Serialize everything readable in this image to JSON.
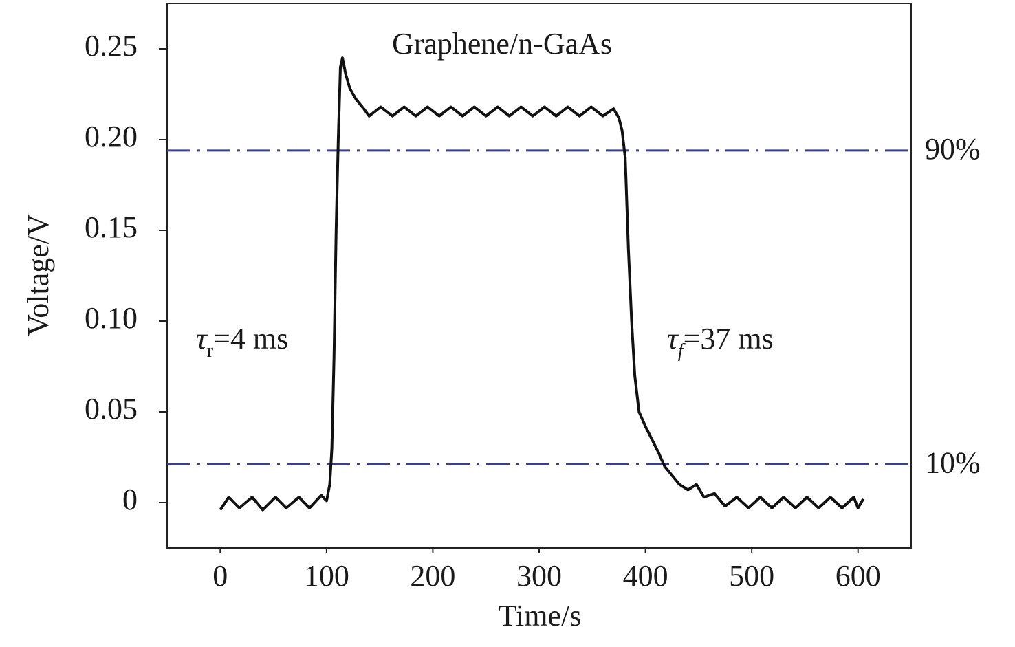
{
  "chart_data": {
    "type": "line",
    "xlabel": "Time/s",
    "ylabel": "Voltage/V",
    "xlim": [
      -50,
      650
    ],
    "xticks": [
      0,
      100,
      200,
      300,
      400,
      500,
      600
    ],
    "ylim": [
      -0.025,
      0.275
    ],
    "yticks": [
      {
        "value": 0,
        "label": "0"
      },
      {
        "value": 0.05,
        "label": "0.05"
      },
      {
        "value": 0.1,
        "label": "0.10"
      },
      {
        "value": 0.15,
        "label": "0.15"
      },
      {
        "value": 0.2,
        "label": "0.20"
      },
      {
        "value": 0.25,
        "label": "0.25"
      }
    ],
    "series": [
      {
        "color": "#111111",
        "x": [
          0,
          8,
          18,
          30,
          40,
          52,
          62,
          74,
          84,
          95,
          100,
          103,
          105,
          107,
          109,
          111,
          113,
          115,
          118,
          122,
          128,
          135,
          140,
          151,
          162,
          173,
          184,
          195,
          206,
          217,
          228,
          239,
          250,
          261,
          272,
          283,
          294,
          305,
          316,
          327,
          338,
          349,
          360,
          370,
          375,
          378,
          381,
          384,
          387,
          390,
          394,
          400,
          406,
          412,
          418,
          425,
          432,
          440,
          448,
          455,
          465,
          475,
          486,
          497,
          508,
          519,
          530,
          541,
          552,
          563,
          574,
          585,
          596,
          600,
          605
        ],
        "values": [
          -0.004,
          0.003,
          -0.003,
          0.003,
          -0.004,
          0.003,
          -0.003,
          0.003,
          -0.003,
          0.004,
          0.001,
          0.01,
          0.03,
          0.08,
          0.15,
          0.2,
          0.24,
          0.245,
          0.236,
          0.228,
          0.222,
          0.217,
          0.213,
          0.218,
          0.213,
          0.218,
          0.213,
          0.218,
          0.213,
          0.218,
          0.213,
          0.218,
          0.213,
          0.218,
          0.213,
          0.218,
          0.213,
          0.218,
          0.213,
          0.218,
          0.213,
          0.218,
          0.213,
          0.217,
          0.212,
          0.205,
          0.19,
          0.14,
          0.1,
          0.07,
          0.05,
          0.042,
          0.035,
          0.028,
          0.02,
          0.015,
          0.01,
          0.007,
          0.01,
          0.003,
          0.005,
          -0.002,
          0.003,
          -0.003,
          0.003,
          -0.003,
          0.003,
          -0.003,
          0.003,
          -0.003,
          0.003,
          -0.003,
          0.003,
          -0.003,
          0.002
        ]
      }
    ],
    "reference_lines": [
      {
        "value": 0.194,
        "label": "90%",
        "color": "#3a3f8f"
      },
      {
        "value": 0.021,
        "label": "10%",
        "color": "#3a3f8f"
      }
    ],
    "annotations": [
      {
        "text": "Graphene/n-GaAs"
      },
      {
        "symbol": "τ",
        "subscript": "r",
        "text": "=4 ms"
      },
      {
        "symbol": "τ",
        "subscript": "f",
        "text": "=37 ms"
      }
    ]
  }
}
